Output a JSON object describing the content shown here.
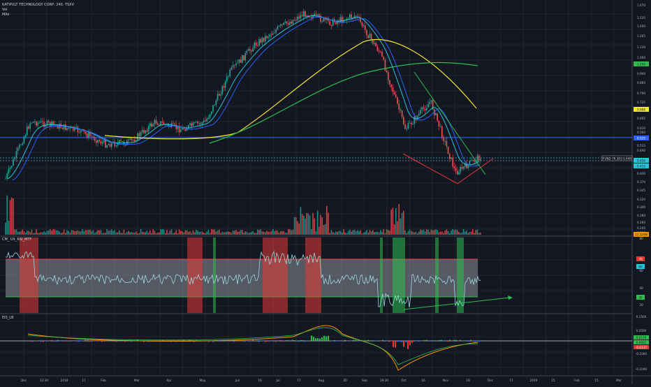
{
  "header": {
    "symbol_title": "KATIPULT TECHNOLOGY CORP, 240, TSXV",
    "legend_items": [
      "Vol",
      "MAs"
    ]
  },
  "price_scale": {
    "ticks": [
      "1.670",
      "1.535",
      "1.400",
      "1.265",
      "1.130",
      "1.000",
      "0.940",
      "0.860",
      "0.790",
      "0.725",
      "0.665",
      "0.610",
      "0.560",
      "0.515",
      "0.490",
      "0.435",
      "0.400",
      "0.370",
      "0.345",
      "0.320",
      "0.300",
      "0.280",
      "0.260",
      "0.245",
      "0.225"
    ],
    "badges": [
      {
        "label": "1.050",
        "color": "#2ebd4e"
      },
      {
        "label": "0.688",
        "color": "#f5e72e"
      },
      {
        "label": "0.525",
        "color": "#2962ff"
      },
      {
        "label": "0.450",
        "color": "#26c6da"
      },
      {
        "label": "0.415",
        "color": "#26c6da"
      },
      {
        "label": "33.329M",
        "color": "#ff9800"
      }
    ],
    "fund_label": "FUND 76.303 0.440"
  },
  "panes": {
    "osc_title": "CM_ Ult_RSI_MTF",
    "osc_ticks": [
      "80",
      "60",
      "40",
      "20"
    ],
    "osc_badges": [
      {
        "label": "70",
        "color": "#e53935"
      },
      {
        "label": "60",
        "color": "#26c6da"
      },
      {
        "label": "30",
        "color": "#2ebd4e"
      }
    ],
    "macd_title": "EIS_LB",
    "macd_ticks": [
      "0.1500",
      "0.0500",
      "-0.1000",
      "-0.2000"
    ],
    "macd_badges": [
      {
        "label": "0.0174",
        "color": "#2ebd4e"
      },
      {
        "label": "0.0001",
        "color": "#2ebd4e"
      },
      {
        "label": "-0.0137",
        "color": "#e53935"
      }
    ]
  },
  "time_axis": {
    "labels": [
      "Dec",
      "13:30",
      "2018",
      "17",
      "Feb",
      "Mar",
      "Apr",
      "May",
      "Jun",
      "16",
      "Jul",
      "17",
      "Aug",
      "20",
      "Sep",
      "19:30",
      "Oct",
      "16",
      "Nov",
      "19",
      "Dec",
      "17",
      "2019",
      "15",
      "Feb",
      "15",
      "Mar"
    ]
  },
  "chart_data": {
    "type": "line",
    "title": "KATIPULT TECHNOLOGY CORP, 240, TSXV",
    "x_unit": "4-hour bars",
    "last_price": 0.44,
    "price_path": [
      {
        "t": "Dec",
        "v": 0.36
      },
      {
        "t": "13:30",
        "v": 0.6
      },
      {
        "t": "2018",
        "v": 0.58
      },
      {
        "t": "17",
        "v": 0.55
      },
      {
        "t": "Feb",
        "v": 0.49
      },
      {
        "t": "Mar",
        "v": 0.5
      },
      {
        "t": "Apr",
        "v": 0.6
      },
      {
        "t": "May",
        "v": 0.56
      },
      {
        "t": "Jun",
        "v": 0.6
      },
      {
        "t": "16",
        "v": 0.94
      },
      {
        "t": "Jul",
        "v": 1.2
      },
      {
        "t": "17",
        "v": 1.4
      },
      {
        "t": "Aug",
        "v": 1.58
      },
      {
        "t": "20",
        "v": 1.45
      },
      {
        "t": "Sep",
        "v": 1.55
      },
      {
        "t": "19:30",
        "v": 1.1
      },
      {
        "t": "Oct",
        "v": 0.56
      },
      {
        "t": "16",
        "v": 0.72
      },
      {
        "t": "Nov",
        "v": 0.38
      },
      {
        "t": "19",
        "v": 0.44
      }
    ],
    "moving_averages": [
      {
        "color": "#f5e72e",
        "last": 0.688
      },
      {
        "color": "#2ebd4e",
        "last": 1.05
      },
      {
        "color": "#2962ff",
        "last": 0.525
      }
    ],
    "oscillator": {
      "title": "CM_ Ult_RSI_MTF",
      "upper": 70,
      "lower": 30,
      "last": 60
    },
    "eis": {
      "title": "EIS_LB",
      "values": [
        0.0174,
        0.0001,
        -0.0137
      ]
    }
  }
}
